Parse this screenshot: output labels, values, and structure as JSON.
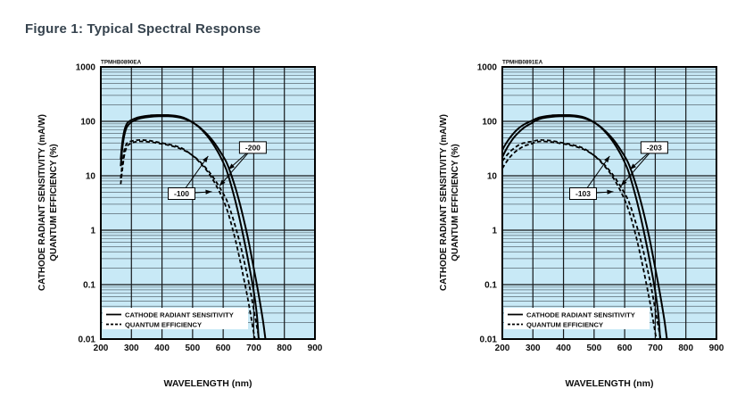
{
  "title": "Figure 1: Typical Spectral Response",
  "axes": {
    "y_label_line1": "CATHODE RADIANT SENSITIVITY (mA/W)",
    "y_label_line2": "QUANTUM EFFICIENCY (%)",
    "x_label": "WAVELENGTH (nm)",
    "y_ticks": [
      "1000",
      "100",
      "10",
      "1",
      "0.1",
      "0.01"
    ],
    "x_ticks": [
      "200",
      "300",
      "400",
      "500",
      "600",
      "700",
      "800",
      "900"
    ]
  },
  "legend": {
    "solid_label": "CATHODE RADIANT SENSITIVITY",
    "dashed_label": "QUANTUM EFFICIENCY"
  },
  "colors": {
    "plot_bg": "#c8e9f6",
    "grid_major": "#16181a",
    "grid_minor": "#5a6b74",
    "curve": "#000000",
    "title_text": "#36434e"
  },
  "chart_data": [
    {
      "type": "line",
      "id_label": "TPMHB0890EA",
      "xlabel": "WAVELENGTH (nm)",
      "ylabel": "CATHODE RADIANT SENSITIVITY (mA/W) / QUANTUM EFFICIENCY (%)",
      "x_range": [
        200,
        900
      ],
      "y_range": [
        0.01,
        1000
      ],
      "y_scale": "log",
      "series": [
        {
          "name": "-100 cathode radiant sensitivity",
          "style": "solid",
          "points": [
            [
              265,
              20
            ],
            [
              270,
              40
            ],
            [
              277,
              68
            ],
            [
              285,
              90
            ],
            [
              295,
              102
            ],
            [
              310,
              112
            ],
            [
              330,
              121
            ],
            [
              360,
              128
            ],
            [
              390,
              130
            ],
            [
              420,
              130
            ],
            [
              450,
              125
            ],
            [
              470,
              117
            ],
            [
              490,
              104
            ],
            [
              510,
              88
            ],
            [
              530,
              70
            ],
            [
              550,
              52
            ],
            [
              570,
              36
            ],
            [
              590,
              23
            ],
            [
              610,
              13
            ],
            [
              625,
              7
            ],
            [
              640,
              3.4
            ],
            [
              655,
              1.5
            ],
            [
              670,
              0.6
            ],
            [
              685,
              0.22
            ],
            [
              700,
              0.075
            ],
            [
              710,
              0.028
            ],
            [
              716,
              0.01
            ]
          ]
        },
        {
          "name": "-200 cathode radiant sensitivity",
          "style": "solid",
          "points": [
            [
              265,
              15
            ],
            [
              270,
              31
            ],
            [
              277,
              56
            ],
            [
              285,
              78
            ],
            [
              295,
              92
            ],
            [
              310,
              104
            ],
            [
              330,
              114
            ],
            [
              360,
              121
            ],
            [
              390,
              124
            ],
            [
              420,
              124
            ],
            [
              450,
              120
            ],
            [
              470,
              113
            ],
            [
              490,
              102
            ],
            [
              510,
              88
            ],
            [
              530,
              72
            ],
            [
              550,
              56
            ],
            [
              570,
              41
            ],
            [
              590,
              28
            ],
            [
              610,
              18
            ],
            [
              625,
              11
            ],
            [
              640,
              6
            ],
            [
              655,
              3
            ],
            [
              670,
              1.35
            ],
            [
              685,
              0.55
            ],
            [
              700,
              0.2
            ],
            [
              715,
              0.07
            ],
            [
              730,
              0.022
            ],
            [
              738,
              0.01
            ]
          ]
        },
        {
          "name": "-100 quantum efficiency",
          "style": "dashed",
          "points": [
            [
              265,
              9
            ],
            [
              270,
              16
            ],
            [
              277,
              30
            ],
            [
              285,
              39
            ],
            [
              295,
              42.5
            ],
            [
              310,
              44.5
            ],
            [
              330,
              45.5
            ],
            [
              360,
              44
            ],
            [
              390,
              41
            ],
            [
              420,
              38
            ],
            [
              450,
              34.5
            ],
            [
              470,
              31
            ],
            [
              490,
              26
            ],
            [
              510,
              21
            ],
            [
              530,
              16
            ],
            [
              550,
              11.7
            ],
            [
              570,
              7.8
            ],
            [
              590,
              4.8
            ],
            [
              610,
              2.6
            ],
            [
              625,
              1.4
            ],
            [
              640,
              0.66
            ],
            [
              655,
              0.28
            ],
            [
              670,
              0.11
            ],
            [
              685,
              0.04
            ],
            [
              700,
              0.013
            ],
            [
              704,
              0.01
            ]
          ]
        },
        {
          "name": "-200 quantum efficiency",
          "style": "dashed",
          "points": [
            [
              265,
              7
            ],
            [
              270,
              12.5
            ],
            [
              277,
              24
            ],
            [
              285,
              34
            ],
            [
              295,
              38.5
            ],
            [
              310,
              41.5
            ],
            [
              330,
              42.8
            ],
            [
              360,
              41.7
            ],
            [
              390,
              39.4
            ],
            [
              420,
              36.6
            ],
            [
              450,
              33
            ],
            [
              470,
              29.8
            ],
            [
              490,
              25.8
            ],
            [
              510,
              21.4
            ],
            [
              530,
              16.8
            ],
            [
              550,
              12.6
            ],
            [
              570,
              8.9
            ],
            [
              590,
              5.9
            ],
            [
              610,
              3.7
            ],
            [
              625,
              2.2
            ],
            [
              640,
              1.16
            ],
            [
              655,
              0.57
            ],
            [
              670,
              0.25
            ],
            [
              685,
              0.1
            ],
            [
              700,
              0.035
            ],
            [
              715,
              0.012
            ],
            [
              718,
              0.01
            ]
          ]
        }
      ],
      "annotations": [
        {
          "label": "-200",
          "box_at": [
            697,
            33
          ],
          "targets": [
            [
              617,
              13
            ],
            [
              588,
              6.5
            ]
          ]
        },
        {
          "label": "-100",
          "box_at": [
            464,
            4.7
          ],
          "targets": [
            [
              551,
              23
            ],
            [
              563,
              5.1
            ]
          ]
        }
      ]
    },
    {
      "type": "line",
      "id_label": "TPMHB0891EA",
      "xlabel": "WAVELENGTH (nm)",
      "ylabel": "CATHODE RADIANT SENSITIVITY (mA/W) / QUANTUM EFFICIENCY (%)",
      "x_range": [
        200,
        900
      ],
      "y_range": [
        0.01,
        1000
      ],
      "y_scale": "log",
      "series": [
        {
          "name": "-103 cathode radiant sensitivity",
          "style": "solid",
          "points": [
            [
              200,
              30
            ],
            [
              212,
              39
            ],
            [
              225,
              50
            ],
            [
              240,
              63
            ],
            [
              255,
              76
            ],
            [
              270,
              87
            ],
            [
              285,
              96
            ],
            [
              295,
              102
            ],
            [
              310,
              112
            ],
            [
              330,
              121
            ],
            [
              360,
              128
            ],
            [
              390,
              130
            ],
            [
              420,
              130
            ],
            [
              450,
              125
            ],
            [
              470,
              117
            ],
            [
              490,
              104
            ],
            [
              510,
              88
            ],
            [
              530,
              70
            ],
            [
              550,
              52
            ],
            [
              570,
              36
            ],
            [
              590,
              23
            ],
            [
              610,
              13
            ],
            [
              625,
              7
            ],
            [
              640,
              3.4
            ],
            [
              655,
              1.5
            ],
            [
              670,
              0.6
            ],
            [
              685,
              0.22
            ],
            [
              700,
              0.075
            ],
            [
              710,
              0.028
            ],
            [
              716,
              0.01
            ]
          ]
        },
        {
          "name": "-203 cathode radiant sensitivity",
          "style": "solid",
          "points": [
            [
              200,
              22
            ],
            [
              212,
              30
            ],
            [
              225,
              40
            ],
            [
              240,
              52
            ],
            [
              255,
              64
            ],
            [
              270,
              76
            ],
            [
              285,
              86
            ],
            [
              295,
              92
            ],
            [
              310,
              104
            ],
            [
              330,
              114
            ],
            [
              360,
              121
            ],
            [
              390,
              124
            ],
            [
              420,
              124
            ],
            [
              450,
              120
            ],
            [
              470,
              113
            ],
            [
              490,
              102
            ],
            [
              510,
              88
            ],
            [
              530,
              72
            ],
            [
              550,
              56
            ],
            [
              570,
              41
            ],
            [
              590,
              28
            ],
            [
              610,
              18
            ],
            [
              625,
              11
            ],
            [
              640,
              6
            ],
            [
              655,
              3
            ],
            [
              670,
              1.35
            ],
            [
              685,
              0.55
            ],
            [
              700,
              0.2
            ],
            [
              715,
              0.07
            ],
            [
              730,
              0.022
            ],
            [
              738,
              0.01
            ]
          ]
        },
        {
          "name": "-103 quantum efficiency",
          "style": "dashed",
          "points": [
            [
              200,
              18.6
            ],
            [
              212,
              22.8
            ],
            [
              225,
              27.6
            ],
            [
              240,
              32.5
            ],
            [
              255,
              37
            ],
            [
              270,
              40
            ],
            [
              285,
              41.8
            ],
            [
              295,
              42.5
            ],
            [
              310,
              44.5
            ],
            [
              330,
              45.5
            ],
            [
              360,
              44
            ],
            [
              390,
              41
            ],
            [
              420,
              38
            ],
            [
              450,
              34.5
            ],
            [
              470,
              31
            ],
            [
              490,
              26
            ],
            [
              510,
              21
            ],
            [
              530,
              16
            ],
            [
              550,
              11.7
            ],
            [
              570,
              7.8
            ],
            [
              590,
              4.8
            ],
            [
              610,
              2.6
            ],
            [
              625,
              1.4
            ],
            [
              640,
              0.66
            ],
            [
              655,
              0.28
            ],
            [
              670,
              0.11
            ],
            [
              685,
              0.04
            ],
            [
              700,
              0.013
            ],
            [
              704,
              0.01
            ]
          ]
        },
        {
          "name": "-203 quantum efficiency",
          "style": "dashed",
          "points": [
            [
              200,
              13.6
            ],
            [
              212,
              17.5
            ],
            [
              225,
              22
            ],
            [
              240,
              26.9
            ],
            [
              255,
              31.1
            ],
            [
              270,
              34.9
            ],
            [
              285,
              37.4
            ],
            [
              295,
              38.5
            ],
            [
              310,
              41.5
            ],
            [
              330,
              42.8
            ],
            [
              360,
              41.7
            ],
            [
              390,
              39.4
            ],
            [
              420,
              36.6
            ],
            [
              450,
              33
            ],
            [
              470,
              29.8
            ],
            [
              490,
              25.8
            ],
            [
              510,
              21.4
            ],
            [
              530,
              16.8
            ],
            [
              550,
              12.6
            ],
            [
              570,
              8.9
            ],
            [
              590,
              5.9
            ],
            [
              610,
              3.7
            ],
            [
              625,
              2.2
            ],
            [
              640,
              1.16
            ],
            [
              655,
              0.57
            ],
            [
              670,
              0.25
            ],
            [
              685,
              0.1
            ],
            [
              700,
              0.035
            ],
            [
              715,
              0.012
            ],
            [
              718,
              0.01
            ]
          ]
        }
      ],
      "annotations": [
        {
          "label": "-203",
          "box_at": [
            697,
            33
          ],
          "targets": [
            [
              617,
              13
            ],
            [
              588,
              6.5
            ]
          ]
        },
        {
          "label": "-103",
          "box_at": [
            464,
            4.7
          ],
          "targets": [
            [
              551,
              23
            ],
            [
              563,
              5.1
            ]
          ]
        }
      ]
    }
  ]
}
